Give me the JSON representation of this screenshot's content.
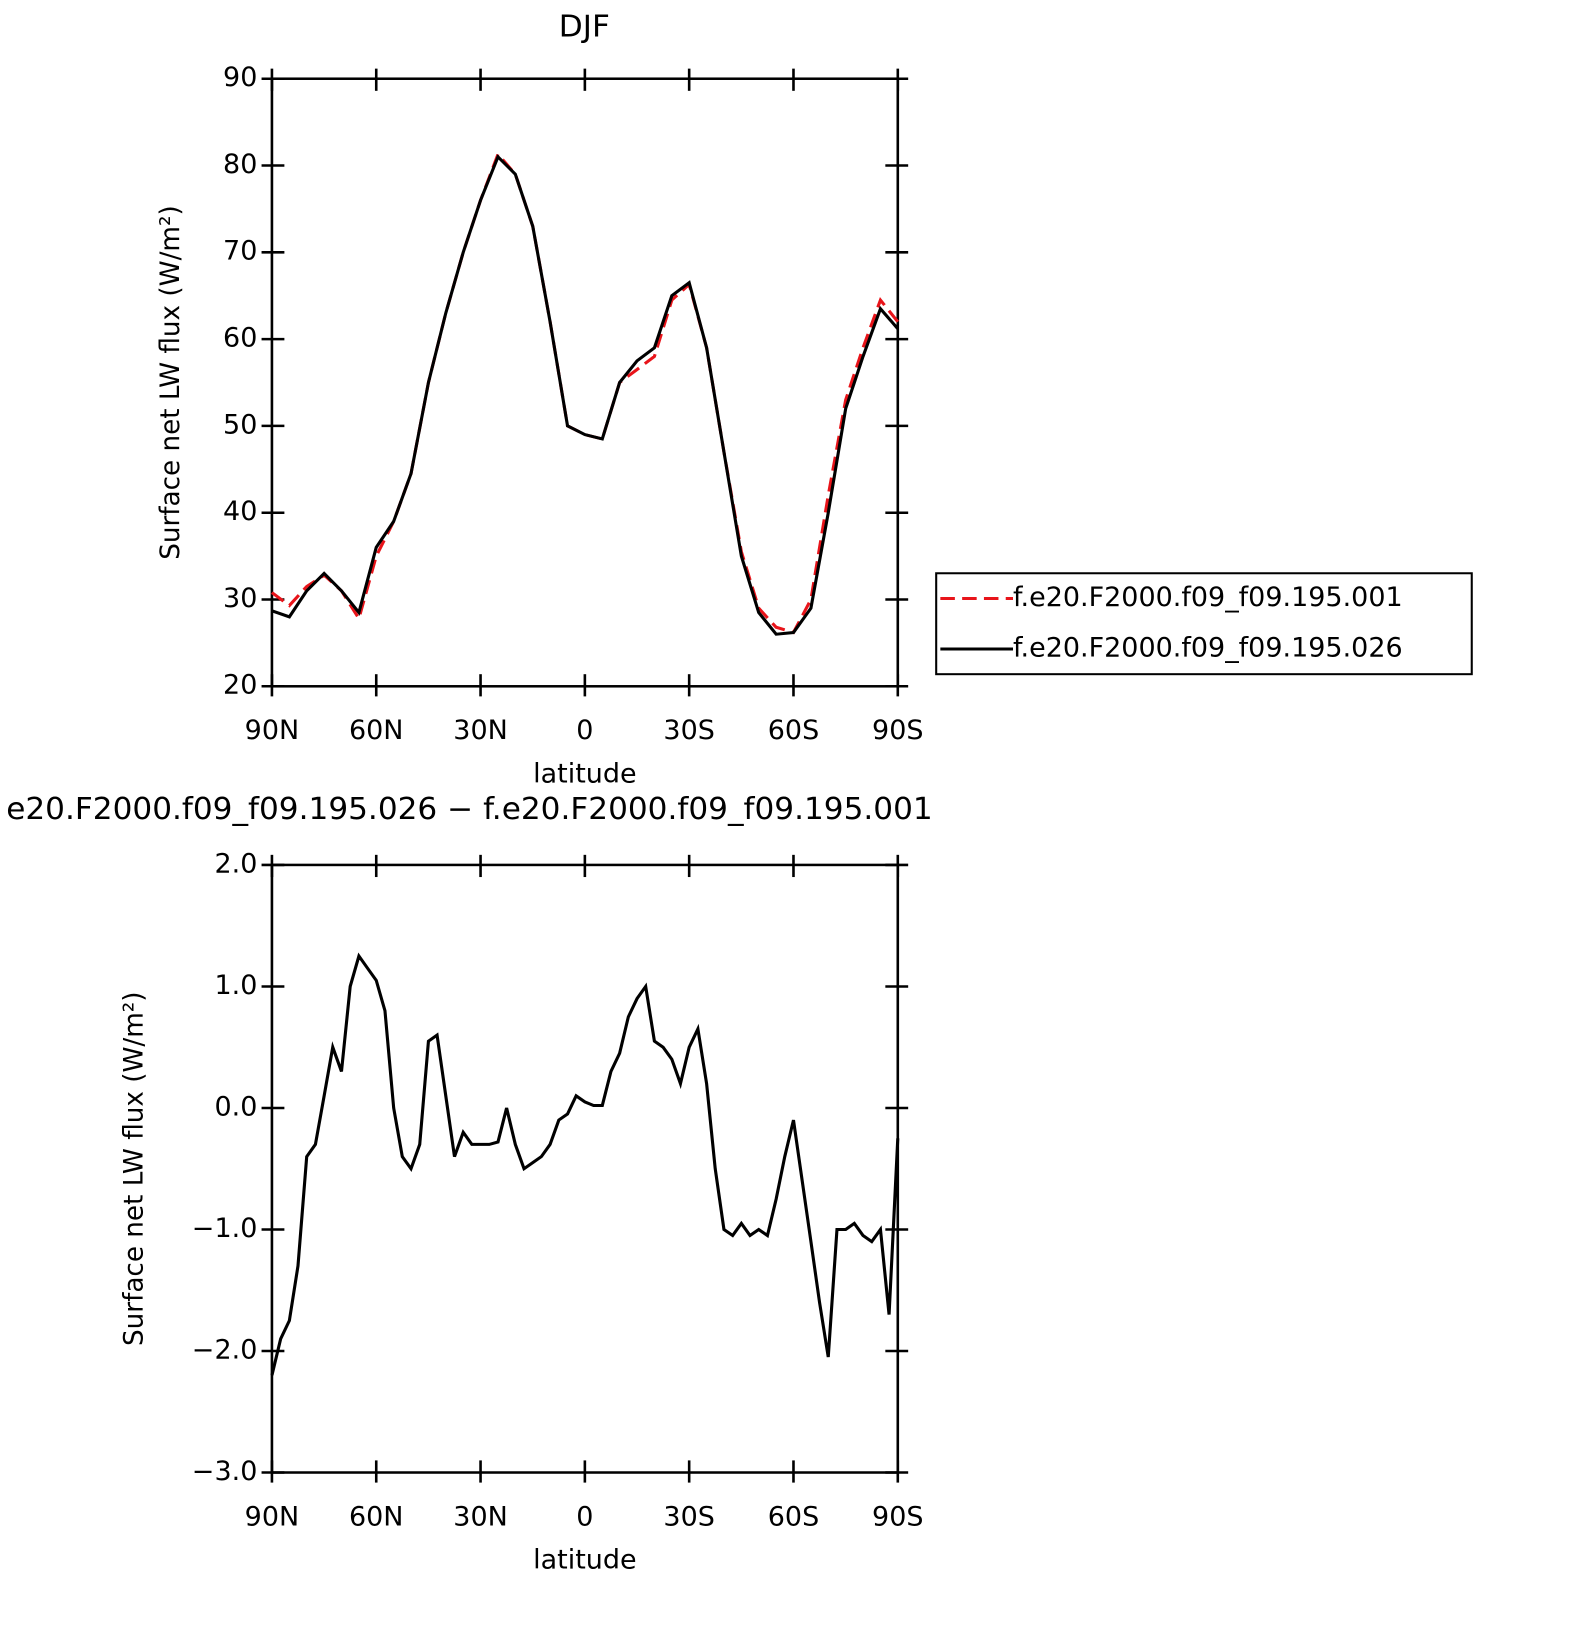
{
  "chart_data": [
    {
      "type": "line",
      "title": "DJF",
      "x_label": "latitude",
      "y_label": "Surface net LW flux (W/m²)",
      "x": [
        90,
        85,
        80,
        75,
        70,
        65,
        60,
        55,
        50,
        45,
        40,
        35,
        30,
        25,
        20,
        15,
        10,
        5,
        0,
        -5,
        -10,
        -15,
        -20,
        -25,
        -30,
        -35,
        -40,
        -45,
        -50,
        -55,
        -60,
        -65,
        -70,
        -75,
        -80,
        -85,
        -90
      ],
      "series": [
        {
          "name": "f.e20.F2000.f09_f09.195.001",
          "color": "#e8141a",
          "dashed": true,
          "values": [
            30.8,
            29.3,
            31.5,
            32.8,
            31,
            27.8,
            35,
            39,
            44.5,
            55,
            63,
            70,
            76,
            81.3,
            79,
            73,
            62,
            50,
            49,
            48.5,
            55,
            56.5,
            58,
            64.5,
            66.3,
            59,
            47,
            35.5,
            29,
            26.8,
            26.2,
            30,
            42,
            53,
            59,
            64.5,
            62
          ]
        },
        {
          "name": "f.e20.F2000.f09_f09.195.026",
          "color": "#000000",
          "dashed": false,
          "values": [
            28.7,
            28.0,
            31,
            33,
            31,
            28.5,
            36,
            39,
            44.5,
            55,
            63,
            70,
            76,
            81,
            79,
            73,
            62,
            50,
            49,
            48.5,
            55,
            57.5,
            59,
            65,
            66.5,
            59,
            47,
            35,
            28.5,
            26,
            26.2,
            29,
            40,
            52,
            58,
            63.5,
            61.2
          ]
        }
      ],
      "xlim": [
        90,
        -90
      ],
      "xticks": [
        {
          "value": 90,
          "label": "90N"
        },
        {
          "value": 60,
          "label": "60N"
        },
        {
          "value": 30,
          "label": "30N"
        },
        0,
        {
          "value": -30,
          "label": "30S"
        },
        {
          "value": -60,
          "label": "60S"
        },
        {
          "value": -90,
          "label": "90S"
        }
      ],
      "ylim": [
        20,
        90
      ],
      "yticks": [
        20,
        30,
        40,
        50,
        60,
        70,
        80,
        90
      ],
      "legend_position": "right"
    },
    {
      "type": "line",
      "title": "e20.F2000.f09_f09.195.026 − f.e20.F2000.f09_f09.195.001",
      "x_label": "latitude",
      "y_label": "Surface net LW flux (W/m²)",
      "x": [
        90,
        87.5,
        85,
        82.5,
        80,
        77.5,
        75,
        72.5,
        70,
        67.5,
        65,
        62.5,
        60,
        57.5,
        55,
        52.5,
        50,
        47.5,
        45,
        42.5,
        40,
        37.5,
        35,
        32.5,
        30,
        27.5,
        25,
        22.5,
        20,
        17.5,
        15,
        12.5,
        10,
        7.5,
        5,
        2.5,
        0,
        -2.5,
        -5,
        -7.5,
        -10,
        -12.5,
        -15,
        -17.5,
        -20,
        -22.5,
        -25,
        -27.5,
        -30,
        -32.5,
        -35,
        -37.5,
        -40,
        -42.5,
        -45,
        -47.5,
        -50,
        -52.5,
        -55,
        -57.5,
        -60,
        -62.5,
        -65,
        -67.5,
        -70,
        -72.5,
        -75,
        -77.5,
        -80,
        -82.5,
        -85,
        -87.5,
        -90
      ],
      "color": "#000000",
      "values": [
        -2.2,
        -1.9,
        -1.75,
        -1.3,
        -0.4,
        -0.3,
        0.1,
        0.5,
        0.3,
        1.0,
        1.25,
        1.15,
        1.05,
        0.8,
        0.0,
        -0.4,
        -0.5,
        -0.3,
        0.55,
        0.6,
        0.1,
        -0.4,
        -0.2,
        -0.3,
        -0.3,
        -0.3,
        -0.28,
        0.0,
        -0.3,
        -0.5,
        -0.45,
        -0.4,
        -0.3,
        -0.1,
        -0.05,
        0.1,
        0.05,
        0.02,
        0.02,
        0.3,
        0.45,
        0.75,
        0.9,
        1.0,
        0.55,
        0.5,
        0.4,
        0.2,
        0.5,
        0.65,
        0.2,
        -0.5,
        -1.0,
        -1.05,
        -0.95,
        -1.05,
        -1.0,
        -1.05,
        -0.75,
        -0.4,
        -0.1,
        -0.6,
        -1.1,
        -1.6,
        -2.05,
        -1.0,
        -1.0,
        -0.95,
        -1.05,
        -1.1,
        -1.0,
        -1.7,
        -0.25
      ],
      "xlim": [
        90,
        -90
      ],
      "xticks": [
        {
          "value": 90,
          "label": "90N"
        },
        {
          "value": 60,
          "label": "60N"
        },
        {
          "value": 30,
          "label": "30N"
        },
        0,
        {
          "value": -30,
          "label": "30S"
        },
        {
          "value": -60,
          "label": "60S"
        },
        {
          "value": -90,
          "label": "90S"
        }
      ],
      "ylim": [
        -3,
        2
      ],
      "yticks": [
        {
          "value": -3,
          "label": "−3.0"
        },
        {
          "value": -2,
          "label": "−2.0"
        },
        {
          "value": -1,
          "label": "−1.0"
        },
        {
          "value": 0,
          "label": "0.0"
        },
        {
          "value": 1,
          "label": "1.0"
        },
        {
          "value": 2,
          "label": "2.0"
        }
      ]
    }
  ]
}
